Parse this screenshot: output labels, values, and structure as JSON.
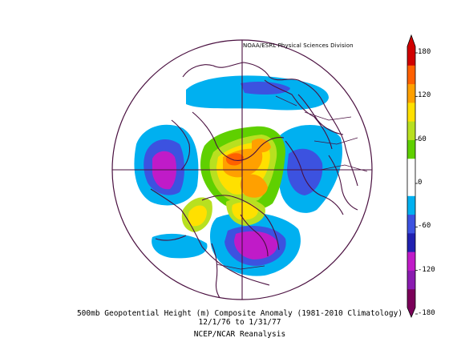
{
  "credit": "NOAA/ESRL Physical Sciences Division",
  "caption": {
    "line1": "500mb Geopotential Height (m) Composite Anomaly (1981-2010 Climatology)",
    "line2": "12/1/76 to 1/31/77",
    "line3": "NCEP/NCAR Reanalysis"
  },
  "colorbar": {
    "ticks": [
      "180",
      "120",
      "60",
      "0",
      "-60",
      "-120",
      "-180"
    ],
    "colors": [
      "#7a0059",
      "#8a1bb0",
      "#c01bc8",
      "#2020b0",
      "#3c52e0",
      "#00b0f0",
      "#ffffff",
      "#ffffff",
      "#5fd000",
      "#b8e020",
      "#ffe000",
      "#ffa000",
      "#ff6000",
      "#d00000"
    ]
  },
  "map": {
    "projection": "north-polar-stereographic",
    "anomaly_regions": [
      {
        "name": "north-pacific-negative-anomaly",
        "sign": "negative"
      },
      {
        "name": "north-atlantic-negative-anomaly",
        "sign": "negative"
      },
      {
        "name": "eastern-north-america-negative-anomaly",
        "sign": "negative"
      },
      {
        "name": "western-north-america-positive-anomaly",
        "sign": "positive"
      },
      {
        "name": "arctic-positive-anomaly",
        "sign": "positive"
      },
      {
        "name": "siberia-positive-anomaly",
        "sign": "positive"
      },
      {
        "name": "europe-positive-anomaly",
        "sign": "positive"
      }
    ]
  }
}
